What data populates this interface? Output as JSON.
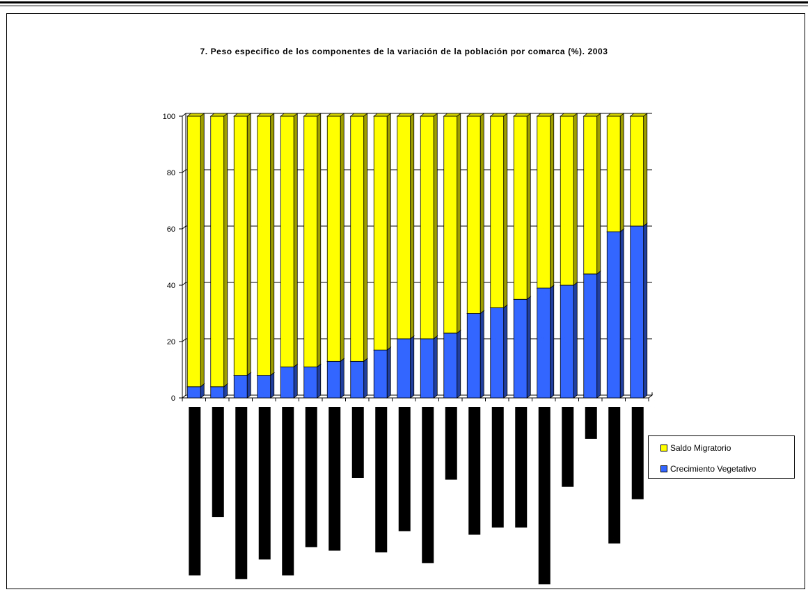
{
  "chart_data": {
    "type": "bar",
    "stacked": true,
    "percent": true,
    "title": "7. Peso especifico de los componentes de la variación de la población por comarca (%). 2003",
    "xlabel": "",
    "ylabel": "",
    "ylim": [
      0,
      100
    ],
    "yticks": [
      "0",
      "20",
      "40",
      "60",
      "80",
      "100"
    ],
    "grid": true,
    "legend_position": "right",
    "categories": [
      "",
      "",
      "",
      "",
      "",
      "",
      "",
      "",
      "",
      "",
      "",
      "",
      "",
      "",
      "",
      "",
      "",
      "",
      "",
      ""
    ],
    "series": [
      {
        "name": "Crecimiento Vegetativo",
        "color": "#3366ff",
        "values": [
          4,
          4,
          8,
          8,
          11,
          11,
          13,
          13,
          17,
          21,
          21,
          23,
          30,
          32,
          35,
          39,
          40,
          44,
          59,
          61
        ]
      },
      {
        "name": "Saldo Migratorio",
        "color": "#ffff00",
        "values": [
          96,
          96,
          92,
          92,
          89,
          89,
          87,
          87,
          83,
          79,
          79,
          77,
          70,
          68,
          65,
          61,
          60,
          56,
          41,
          39
        ]
      }
    ],
    "lower_bars": {
      "color": "#000000",
      "relative_lengths": [
        0.95,
        0.62,
        0.97,
        0.86,
        0.95,
        0.79,
        0.81,
        0.4,
        0.82,
        0.7,
        0.88,
        0.41,
        0.72,
        0.68,
        0.68,
        1.0,
        0.45,
        0.18,
        0.77,
        0.52
      ]
    }
  }
}
